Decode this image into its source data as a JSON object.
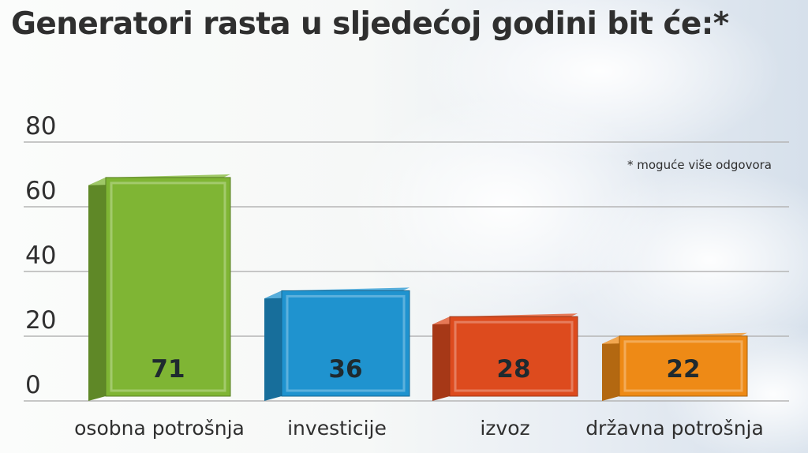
{
  "chart_data": {
    "type": "bar",
    "title": "Generatori rasta u sljedećoj godini bit će:*",
    "annotation": "* moguće više odgovora",
    "categories": [
      "osobna potrošnja",
      "investicije",
      "izvoz",
      "državna potrošnja"
    ],
    "values": [
      71,
      36,
      28,
      22
    ],
    "value_labels": [
      "71",
      "36",
      "28",
      "22"
    ],
    "bar_colors": [
      "#7fb534",
      "#1f93cf",
      "#dd4b1e",
      "#ee8a16"
    ],
    "ylim": [
      0,
      80
    ],
    "yticks": [
      0,
      20,
      40,
      60,
      80
    ],
    "xlabel": "",
    "ylabel": "",
    "grid": true,
    "legend": "none"
  }
}
